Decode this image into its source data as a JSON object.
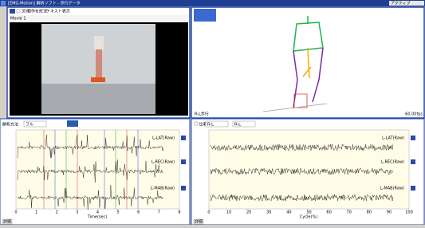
{
  "window": {
    "title": "[EMG-Motion] 解析ソフト - 歩行データ",
    "status": "アクティブ"
  },
  "movie": {
    "tab": "Movie 1",
    "option1": "3D動作を接続",
    "option2": "テキスト表示"
  },
  "skeleton": {
    "label": "R-L歩行",
    "fps": "60.00fps"
  },
  "emg": {
    "method_label": "解析方法",
    "method": "フル",
    "x_label": "Time(sec)",
    "xticks": [
      "0",
      "1",
      "2",
      "3",
      "4",
      "5",
      "6",
      "7",
      "8"
    ],
    "channels": [
      "L-LAT(Raw)",
      "L-REC(Raw)",
      "L-MAB(Raw)"
    ],
    "button": "詳細"
  },
  "cycle": {
    "option": "比較",
    "select1": "R-L",
    "select2": "R-L",
    "x_label": "Cycle(%)",
    "xticks": [
      "0",
      "10",
      "20",
      "30",
      "40",
      "50",
      "60",
      "70",
      "80",
      "90",
      "100"
    ],
    "channels": [
      "L-LAT(Raw)",
      "L-REC(Raw)",
      "L-MAB(Raw)"
    ],
    "button": "詳細"
  }
}
